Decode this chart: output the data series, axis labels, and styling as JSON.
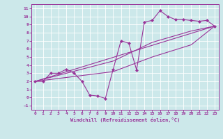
{
  "bg_color": "#cce8ea",
  "line_color": "#993399",
  "grid_color": "#ffffff",
  "xlabel": "Windchill (Refroidissement éolien,°C)",
  "xlim": [
    -0.5,
    23.5
  ],
  "ylim": [
    -1.5,
    11.5
  ],
  "xticks": [
    0,
    1,
    2,
    3,
    4,
    5,
    6,
    7,
    8,
    9,
    10,
    11,
    12,
    13,
    14,
    15,
    16,
    17,
    18,
    19,
    20,
    21,
    22,
    23
  ],
  "yticks": [
    -1,
    0,
    1,
    2,
    3,
    4,
    5,
    6,
    7,
    8,
    9,
    10,
    11
  ],
  "line_zigzag": {
    "x": [
      0,
      1,
      2,
      3,
      4,
      5,
      6,
      7,
      8,
      9,
      10,
      11,
      12,
      13,
      14,
      15,
      16,
      17,
      18,
      19,
      20,
      21,
      22,
      23
    ],
    "y": [
      2,
      2,
      3,
      3,
      3.5,
      3,
      2,
      0.3,
      0.2,
      -0.1,
      3.5,
      7,
      6.7,
      3.4,
      9.3,
      9.5,
      10.7,
      10,
      9.6,
      9.6,
      9.5,
      9.4,
      9.5,
      8.8
    ]
  },
  "line_straight": {
    "x": [
      0,
      23
    ],
    "y": [
      2,
      8.8
    ]
  },
  "line_upper": {
    "x": [
      0,
      10,
      15,
      20,
      23
    ],
    "y": [
      2,
      4.5,
      6.8,
      8.2,
      8.8
    ]
  },
  "line_lower": {
    "x": [
      0,
      10,
      15,
      20,
      23
    ],
    "y": [
      2,
      3.2,
      5.0,
      6.5,
      8.8
    ]
  }
}
